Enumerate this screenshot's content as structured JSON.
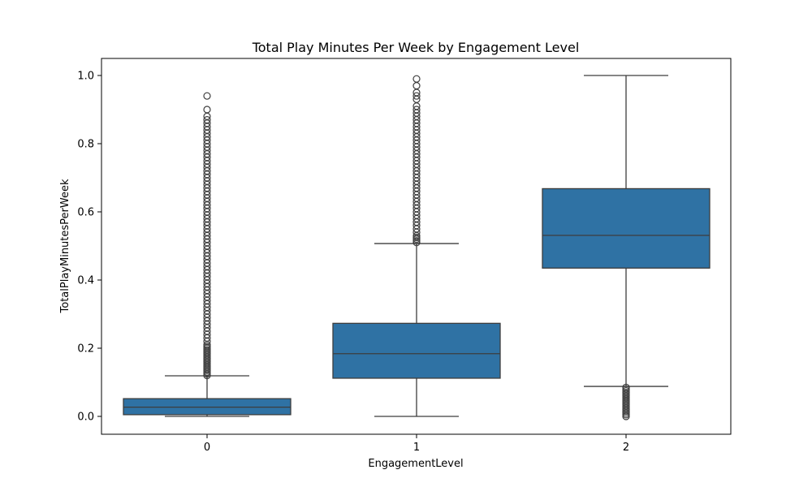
{
  "chart_data": {
    "type": "box",
    "title": "Total Play Minutes Per Week by Engagement Level",
    "xlabel": "EngagementLevel",
    "ylabel": "TotalPlayMinutesPerWeek",
    "ylim": [
      -0.05,
      1.05
    ],
    "yticks": [
      0.0,
      0.2,
      0.4,
      0.6,
      0.8,
      1.0
    ],
    "ytick_labels": [
      "0.0",
      "0.2",
      "0.4",
      "0.6",
      "0.8",
      "1.0"
    ],
    "grid": false,
    "box_color": "#2f72a4",
    "line_color": "#3d3d3d",
    "categories": [
      "0",
      "1",
      "2"
    ],
    "boxes": [
      {
        "category": "0",
        "whisker_low": 0.0,
        "q1": 0.005,
        "median": 0.027,
        "q3": 0.052,
        "whisker_high": 0.119,
        "outliers": [
          0.12,
          0.125,
          0.13,
          0.135,
          0.14,
          0.145,
          0.15,
          0.155,
          0.16,
          0.165,
          0.17,
          0.175,
          0.18,
          0.185,
          0.19,
          0.195,
          0.2,
          0.205,
          0.21,
          0.22,
          0.23,
          0.24,
          0.25,
          0.26,
          0.27,
          0.28,
          0.29,
          0.3,
          0.31,
          0.32,
          0.33,
          0.34,
          0.35,
          0.36,
          0.37,
          0.38,
          0.39,
          0.4,
          0.41,
          0.42,
          0.43,
          0.44,
          0.45,
          0.46,
          0.47,
          0.48,
          0.49,
          0.5,
          0.51,
          0.52,
          0.53,
          0.54,
          0.55,
          0.56,
          0.57,
          0.58,
          0.59,
          0.6,
          0.61,
          0.62,
          0.63,
          0.64,
          0.65,
          0.66,
          0.67,
          0.68,
          0.69,
          0.7,
          0.71,
          0.72,
          0.73,
          0.74,
          0.75,
          0.76,
          0.77,
          0.78,
          0.79,
          0.8,
          0.81,
          0.82,
          0.83,
          0.84,
          0.85,
          0.86,
          0.87,
          0.88,
          0.9,
          0.94
        ]
      },
      {
        "category": "1",
        "whisker_low": 0.0,
        "q1": 0.112,
        "median": 0.184,
        "q3": 0.273,
        "whisker_high": 0.507,
        "outliers": [
          0.51,
          0.515,
          0.52,
          0.525,
          0.53,
          0.54,
          0.55,
          0.56,
          0.57,
          0.58,
          0.59,
          0.6,
          0.61,
          0.62,
          0.63,
          0.64,
          0.65,
          0.66,
          0.67,
          0.68,
          0.69,
          0.7,
          0.71,
          0.72,
          0.73,
          0.74,
          0.75,
          0.76,
          0.77,
          0.78,
          0.79,
          0.8,
          0.81,
          0.82,
          0.83,
          0.84,
          0.85,
          0.86,
          0.87,
          0.88,
          0.89,
          0.9,
          0.91,
          0.93,
          0.94,
          0.95,
          0.97,
          0.99
        ]
      },
      {
        "category": "2",
        "whisker_low": 0.088,
        "q1": 0.435,
        "median": 0.531,
        "q3": 0.668,
        "whisker_high": 1.0,
        "outliers": [
          0.0,
          0.005,
          0.01,
          0.015,
          0.02,
          0.025,
          0.03,
          0.035,
          0.04,
          0.045,
          0.05,
          0.055,
          0.06,
          0.065,
          0.07,
          0.075,
          0.08,
          0.085
        ]
      }
    ]
  }
}
